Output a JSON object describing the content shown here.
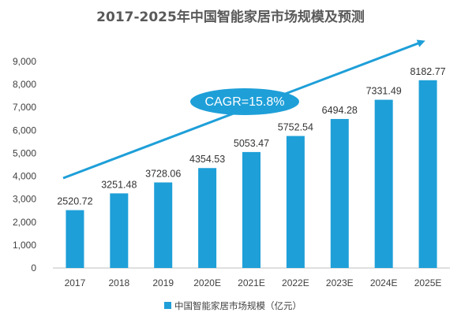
{
  "chart_data": {
    "type": "bar",
    "title": "2017-2025年中国智能家居市场规模及预测",
    "categories": [
      "2017",
      "2018",
      "2019",
      "2020E",
      "2021E",
      "2022E",
      "2023E",
      "2024E",
      "2025E"
    ],
    "series": [
      {
        "name": "中国智能家居市场规模（亿元）",
        "values": [
          2520.72,
          3251.48,
          3728.06,
          4354.53,
          5053.47,
          5752.54,
          6494.28,
          7331.49,
          8182.77
        ],
        "labels": [
          "2520.72",
          "3251.48",
          "3728.06",
          "4354.53",
          "5053.47",
          "5752.54",
          "6494.28",
          "7331.49",
          "8182.77"
        ]
      }
    ],
    "yticks": [
      "0",
      "1,000",
      "2,000",
      "3,000",
      "4,000",
      "5,000",
      "6,000",
      "7,000",
      "8,000",
      "9,000"
    ],
    "ylim": [
      0,
      9000
    ],
    "grid": false,
    "legend_position": "bottom",
    "annotation": "CAGR=15.8%",
    "colors": {
      "bar": "#1e9fd8",
      "arrow": "#1e9fd8",
      "ellipse": "#1e9fd8",
      "title": "#595959",
      "axis": "#bfbfbf"
    }
  }
}
